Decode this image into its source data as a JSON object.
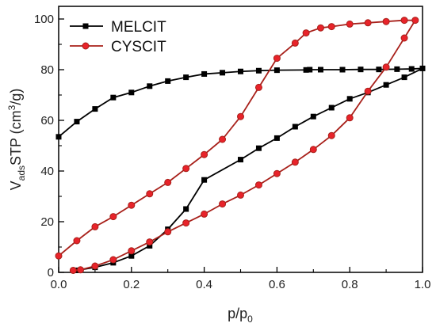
{
  "chart_data": {
    "type": "line",
    "xlabel": "p/p0",
    "xlabel_main": "p/p",
    "xlabel_sub": "0",
    "ylabel": "VadsSTP (cm3/g)",
    "ylabel_parts": {
      "v": "V",
      "sub": "ads",
      "mid": "STP (cm",
      "sup": "3",
      "end": "/g)"
    },
    "xlim": [
      0.0,
      1.0
    ],
    "ylim": [
      0,
      105
    ],
    "x_ticks": [
      0.0,
      0.2,
      0.4,
      0.6,
      0.8,
      1.0
    ],
    "x_tick_labels": [
      "0.0",
      "0.2",
      "0.4",
      "0.6",
      "0.8",
      "1.0"
    ],
    "y_ticks": [
      0,
      20,
      40,
      60,
      80,
      100
    ],
    "y_tick_labels": [
      "0",
      "20",
      "40",
      "60",
      "80",
      "100"
    ],
    "grid": false,
    "legend_position": "top-left",
    "series": [
      {
        "name": "MELCIT",
        "color": "#000000",
        "marker_fill": "#000000",
        "marker": "square",
        "x": [
          0.05,
          0.1,
          0.15,
          0.2,
          0.25,
          0.3,
          0.35,
          0.4,
          0.5,
          0.55,
          0.6,
          0.65,
          0.7,
          0.75,
          0.8,
          0.85,
          0.9,
          0.95,
          1.0,
          0.97,
          0.93,
          0.88,
          0.83,
          0.78,
          0.72,
          0.69,
          0.68,
          0.6,
          0.55,
          0.5,
          0.45,
          0.4,
          0.35,
          0.3,
          0.25,
          0.2,
          0.15,
          0.1,
          0.05,
          0.0
        ],
        "y": [
          0.8,
          2.0,
          3.8,
          6.5,
          10.5,
          17.0,
          25.0,
          36.5,
          44.5,
          49.0,
          53.0,
          57.5,
          61.5,
          65.0,
          68.5,
          71.0,
          74.0,
          77.0,
          80.5,
          80.3,
          80.2,
          80.1,
          80.1,
          80.0,
          80.0,
          80.0,
          79.9,
          79.8,
          79.6,
          79.3,
          78.8,
          78.3,
          77.0,
          75.5,
          73.5,
          71.0,
          69.0,
          64.5,
          59.5,
          53.5
        ]
      },
      {
        "name": "CYSCIT",
        "color": "#a8201a",
        "marker_fill": "#e8232a",
        "marker": "circle",
        "x": [
          0.04,
          0.06,
          0.1,
          0.15,
          0.2,
          0.25,
          0.3,
          0.35,
          0.4,
          0.45,
          0.5,
          0.55,
          0.6,
          0.65,
          0.7,
          0.75,
          0.8,
          0.85,
          0.9,
          0.95,
          0.98,
          0.95,
          0.9,
          0.85,
          0.8,
          0.75,
          0.72,
          0.68,
          0.65,
          0.6,
          0.55,
          0.5,
          0.45,
          0.4,
          0.35,
          0.3,
          0.25,
          0.2,
          0.15,
          0.1,
          0.05,
          0.0
        ],
        "y": [
          0.8,
          1.0,
          2.5,
          5.0,
          8.5,
          12.0,
          16.0,
          19.5,
          23.0,
          27.0,
          30.5,
          34.5,
          39.0,
          43.5,
          48.5,
          54.0,
          61.0,
          71.5,
          81.0,
          92.5,
          99.5,
          99.5,
          99.0,
          98.5,
          98.0,
          97.0,
          96.5,
          94.5,
          90.5,
          84.5,
          73.0,
          61.5,
          52.5,
          46.5,
          41.0,
          35.5,
          31.0,
          26.5,
          22.0,
          18.0,
          12.5,
          6.5
        ]
      }
    ]
  }
}
